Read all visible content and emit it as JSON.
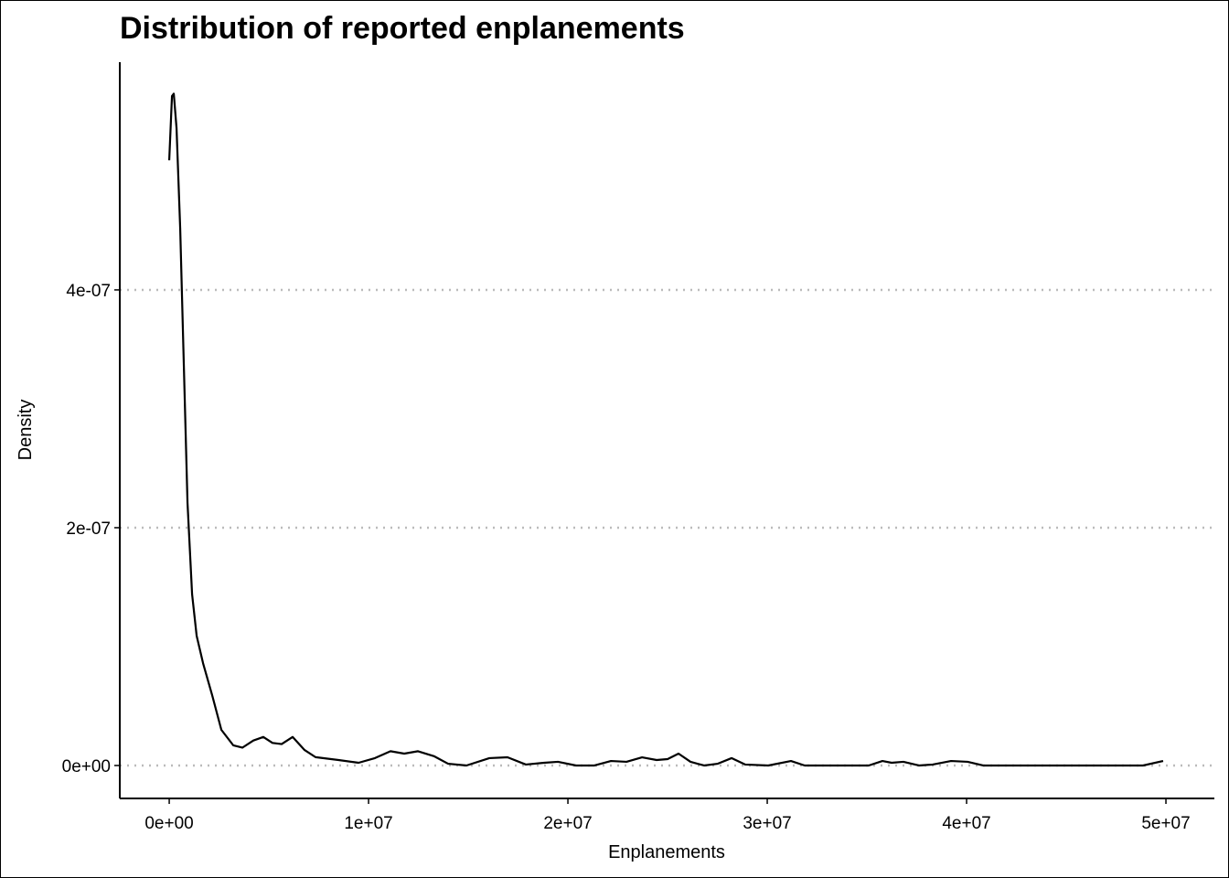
{
  "chart_data": {
    "type": "line",
    "title": "Distribution of reported enplanements",
    "x_label": "Enplanements",
    "y_label": "Density",
    "color": "#000000",
    "grid": true,
    "xlim": [
      -2480000,
      52430000
    ],
    "ylim": [
      -2.77e-08,
      5.915e-07
    ],
    "xticks": [
      {
        "value": 0,
        "label": "0e+00"
      },
      {
        "value": 10000000,
        "label": "1e+07"
      },
      {
        "value": 20000000,
        "label": "2e+07"
      },
      {
        "value": 30000000,
        "label": "3e+07"
      },
      {
        "value": 40000000,
        "label": "4e+07"
      },
      {
        "value": 50000000,
        "label": "5e+07"
      }
    ],
    "yticks": [
      {
        "value": 0,
        "label": "0e+00"
      },
      {
        "value": 2e-07,
        "label": "2e-07"
      },
      {
        "value": 4e-07,
        "label": "4e-07"
      }
    ],
    "x": [
      0,
      138000,
      229000,
      367000,
      550000,
      734000,
      917000,
      1147000,
      1376000,
      1697000,
      2156000,
      2615000,
      3210000,
      3670000,
      4220000,
      4720000,
      5180000,
      5640000,
      6190000,
      6790000,
      7340000,
      8490000,
      9500000,
      10320000,
      11100000,
      11790000,
      12480000,
      13300000,
      13990000,
      14910000,
      16060000,
      16970000,
      17890000,
      18810000,
      19500000,
      20410000,
      21330000,
      22160000,
      22940000,
      23720000,
      24450000,
      25000000,
      25550000,
      26150000,
      26830000,
      27520000,
      28210000,
      28900000,
      30050000,
      31190000,
      31880000,
      35090000,
      35780000,
      36240000,
      36830000,
      37610000,
      38300000,
      39220000,
      40050000,
      40830000,
      48850000,
      49860000
    ],
    "values": [
      5.09e-07,
      5.63e-07,
      5.65e-07,
      5.36e-07,
      4.52e-07,
      3.36e-07,
      2.21e-07,
      1.44e-07,
      1.09e-07,
      8.6e-08,
      5.9e-08,
      3e-08,
      1.7e-08,
      1.5e-08,
      2.1e-08,
      2.4e-08,
      1.9e-08,
      1.8e-08,
      2.4e-08,
      1.3e-08,
      7e-09,
      4.6e-09,
      2.3e-09,
      6.2e-09,
      1.2e-08,
      1e-08,
      1.2e-08,
      7.7e-09,
      1.5e-09,
      0,
      6.2e-09,
      6.9e-09,
      8e-10,
      2.3e-09,
      3.1e-09,
      0,
      0,
      3.8e-09,
      3.1e-09,
      6.9e-09,
      4.6e-09,
      5.4e-09,
      1e-08,
      3.1e-09,
      0,
      1.5e-09,
      6.2e-09,
      8e-10,
      0,
      3.8e-09,
      0,
      0,
      3.8e-09,
      2.3e-09,
      3.1e-09,
      0,
      8e-10,
      3.8e-09,
      3.1e-09,
      0,
      0,
      3.8e-09
    ]
  }
}
